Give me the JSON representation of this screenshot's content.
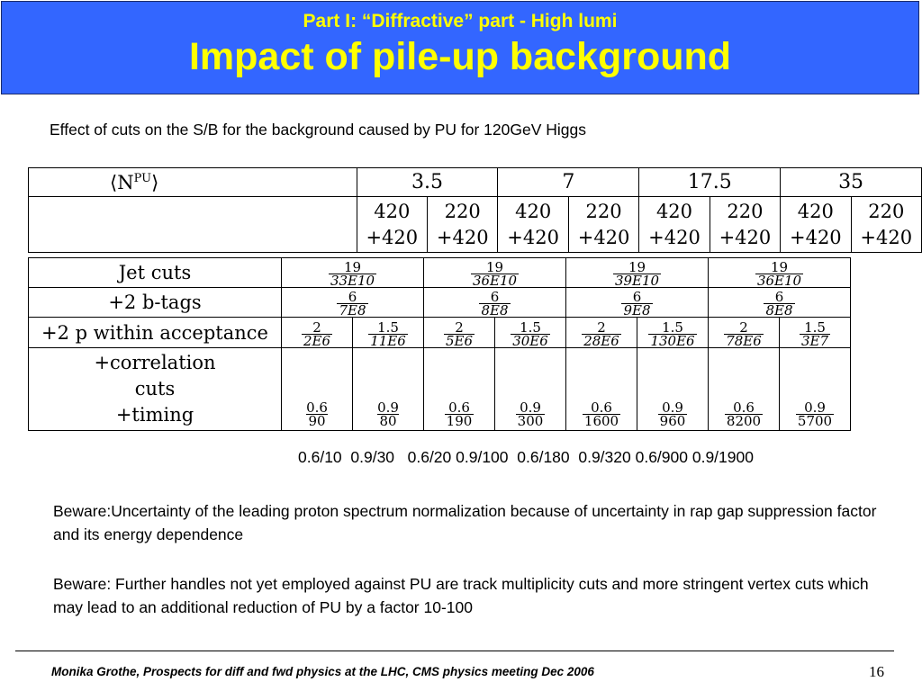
{
  "header": {
    "subtitle": "Part I: “Diffractive” part - High lumi",
    "title": "Impact of pile-up background"
  },
  "intro_text": "Effect of cuts on the S/B for the background caused by PU for 120GeV Higgs",
  "table": {
    "npu_label_pre": "⟨N",
    "npu_label_sup": "PU",
    "npu_label_post": "⟩",
    "lumi_values": [
      "3.5",
      "7",
      "17.5",
      "35"
    ],
    "config_top": [
      "420",
      "220",
      "420",
      "220",
      "420",
      "220",
      "420",
      "220"
    ],
    "config_bottom": [
      "+420",
      "+420",
      "+420",
      "+420",
      "+420",
      "+420",
      "+420",
      "+420"
    ],
    "rows": [
      {
        "label": "Jet cuts",
        "merged": [
          {
            "num": "19",
            "den": "33E10"
          },
          {
            "num": "19",
            "den": "36E10"
          },
          {
            "num": "19",
            "den": "39E10"
          },
          {
            "num": "19",
            "den": "36E10"
          }
        ]
      },
      {
        "label": "+2 b-tags",
        "merged": [
          {
            "num": "6",
            "den": "7E8"
          },
          {
            "num": "6",
            "den": "8E8"
          },
          {
            "num": "6",
            "den": "9E8"
          },
          {
            "num": "6",
            "den": "8E8"
          }
        ]
      },
      {
        "label": "+2 p within acceptance",
        "cells": [
          {
            "num": "2",
            "den": "2E6"
          },
          {
            "num": "1.5",
            "den": "11E6"
          },
          {
            "num": "2",
            "den": "5E6"
          },
          {
            "num": "1.5",
            "den": "30E6"
          },
          {
            "num": "2",
            "den": "28E6"
          },
          {
            "num": "1.5",
            "den": "130E6"
          },
          {
            "num": "2",
            "den": "78E6"
          },
          {
            "num": "1.5",
            "den": "3E7"
          }
        ]
      },
      {
        "label_lines": [
          "+correlation",
          "cuts",
          "+timing"
        ],
        "cells": [
          {
            "num": "0.6",
            "den": "90"
          },
          {
            "num": "0.9",
            "den": "80"
          },
          {
            "num": "0.6",
            "den": "190"
          },
          {
            "num": "0.9",
            "den": "300"
          },
          {
            "num": "0.6",
            "den": "1600"
          },
          {
            "num": "0.9",
            "den": "960"
          },
          {
            "num": "0.6",
            "den": "8200"
          },
          {
            "num": "0.9",
            "den": "5700"
          }
        ]
      }
    ]
  },
  "sb_ratios": "0.6/10  0.9/30   0.6/20 0.9/100  0.6/180  0.9/320 0.6/900 0.9/1900",
  "paragraphs": [
    "Beware:Uncertainty of the leading proton spectrum normalization because of uncertainty in rap gap suppression factor and its energy dependence",
    "Beware: Further handles not yet employed against PU are track multiplicity cuts and more stringent vertex cuts which may lead to an additional reduction of PU by a factor 10-100"
  ],
  "footer": {
    "text": "Monika Grothe, Prospects for diff and fwd physics at the LHC, CMS physics meeting Dec 2006",
    "page_number": "16"
  }
}
